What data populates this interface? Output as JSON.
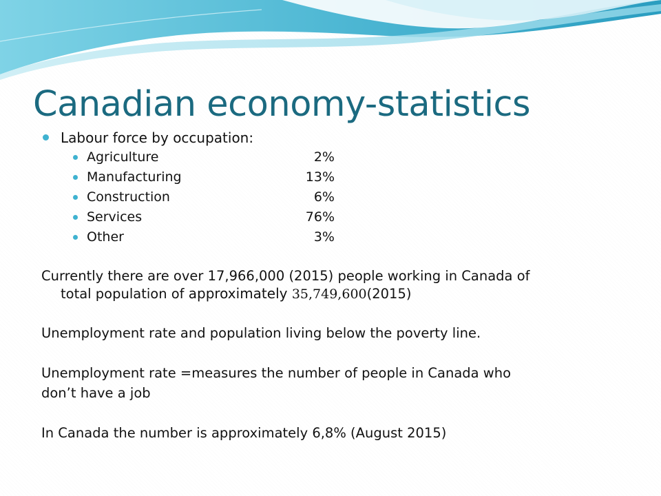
{
  "title": "Canadian economy-statistics",
  "accent_color": "#1b6a80",
  "bullet_color": "#3fb2d0",
  "top_bullet": "Labour force by occupation:",
  "occupations": [
    {
      "label": "Agriculture",
      "value": "2%"
    },
    {
      "label": "Manufacturing",
      "value": "13%"
    },
    {
      "label": "Construction",
      "value": "6%"
    },
    {
      "label": "Services",
      "value": "76%"
    },
    {
      "label": "Other",
      "value": "3%"
    }
  ],
  "workforce": {
    "line1": "Currently there are over  17,966,000  (2015)  people working in Canada of",
    "line2_prefix": "total population of ",
    "line2_word": "approximately ",
    "line2_number": "35,749,600",
    "line2_suffix": "(2015)"
  },
  "unemployment_heading": "Unemployment rate and population living below the poverty line.",
  "unemployment_def_line1": "Unemployment rate =measures the number of people in Canada who",
  "unemployment_def_line2": "don’t have a job",
  "unemployment_value": "In Canada the number is approximately 6,8%  (August 2015)"
}
